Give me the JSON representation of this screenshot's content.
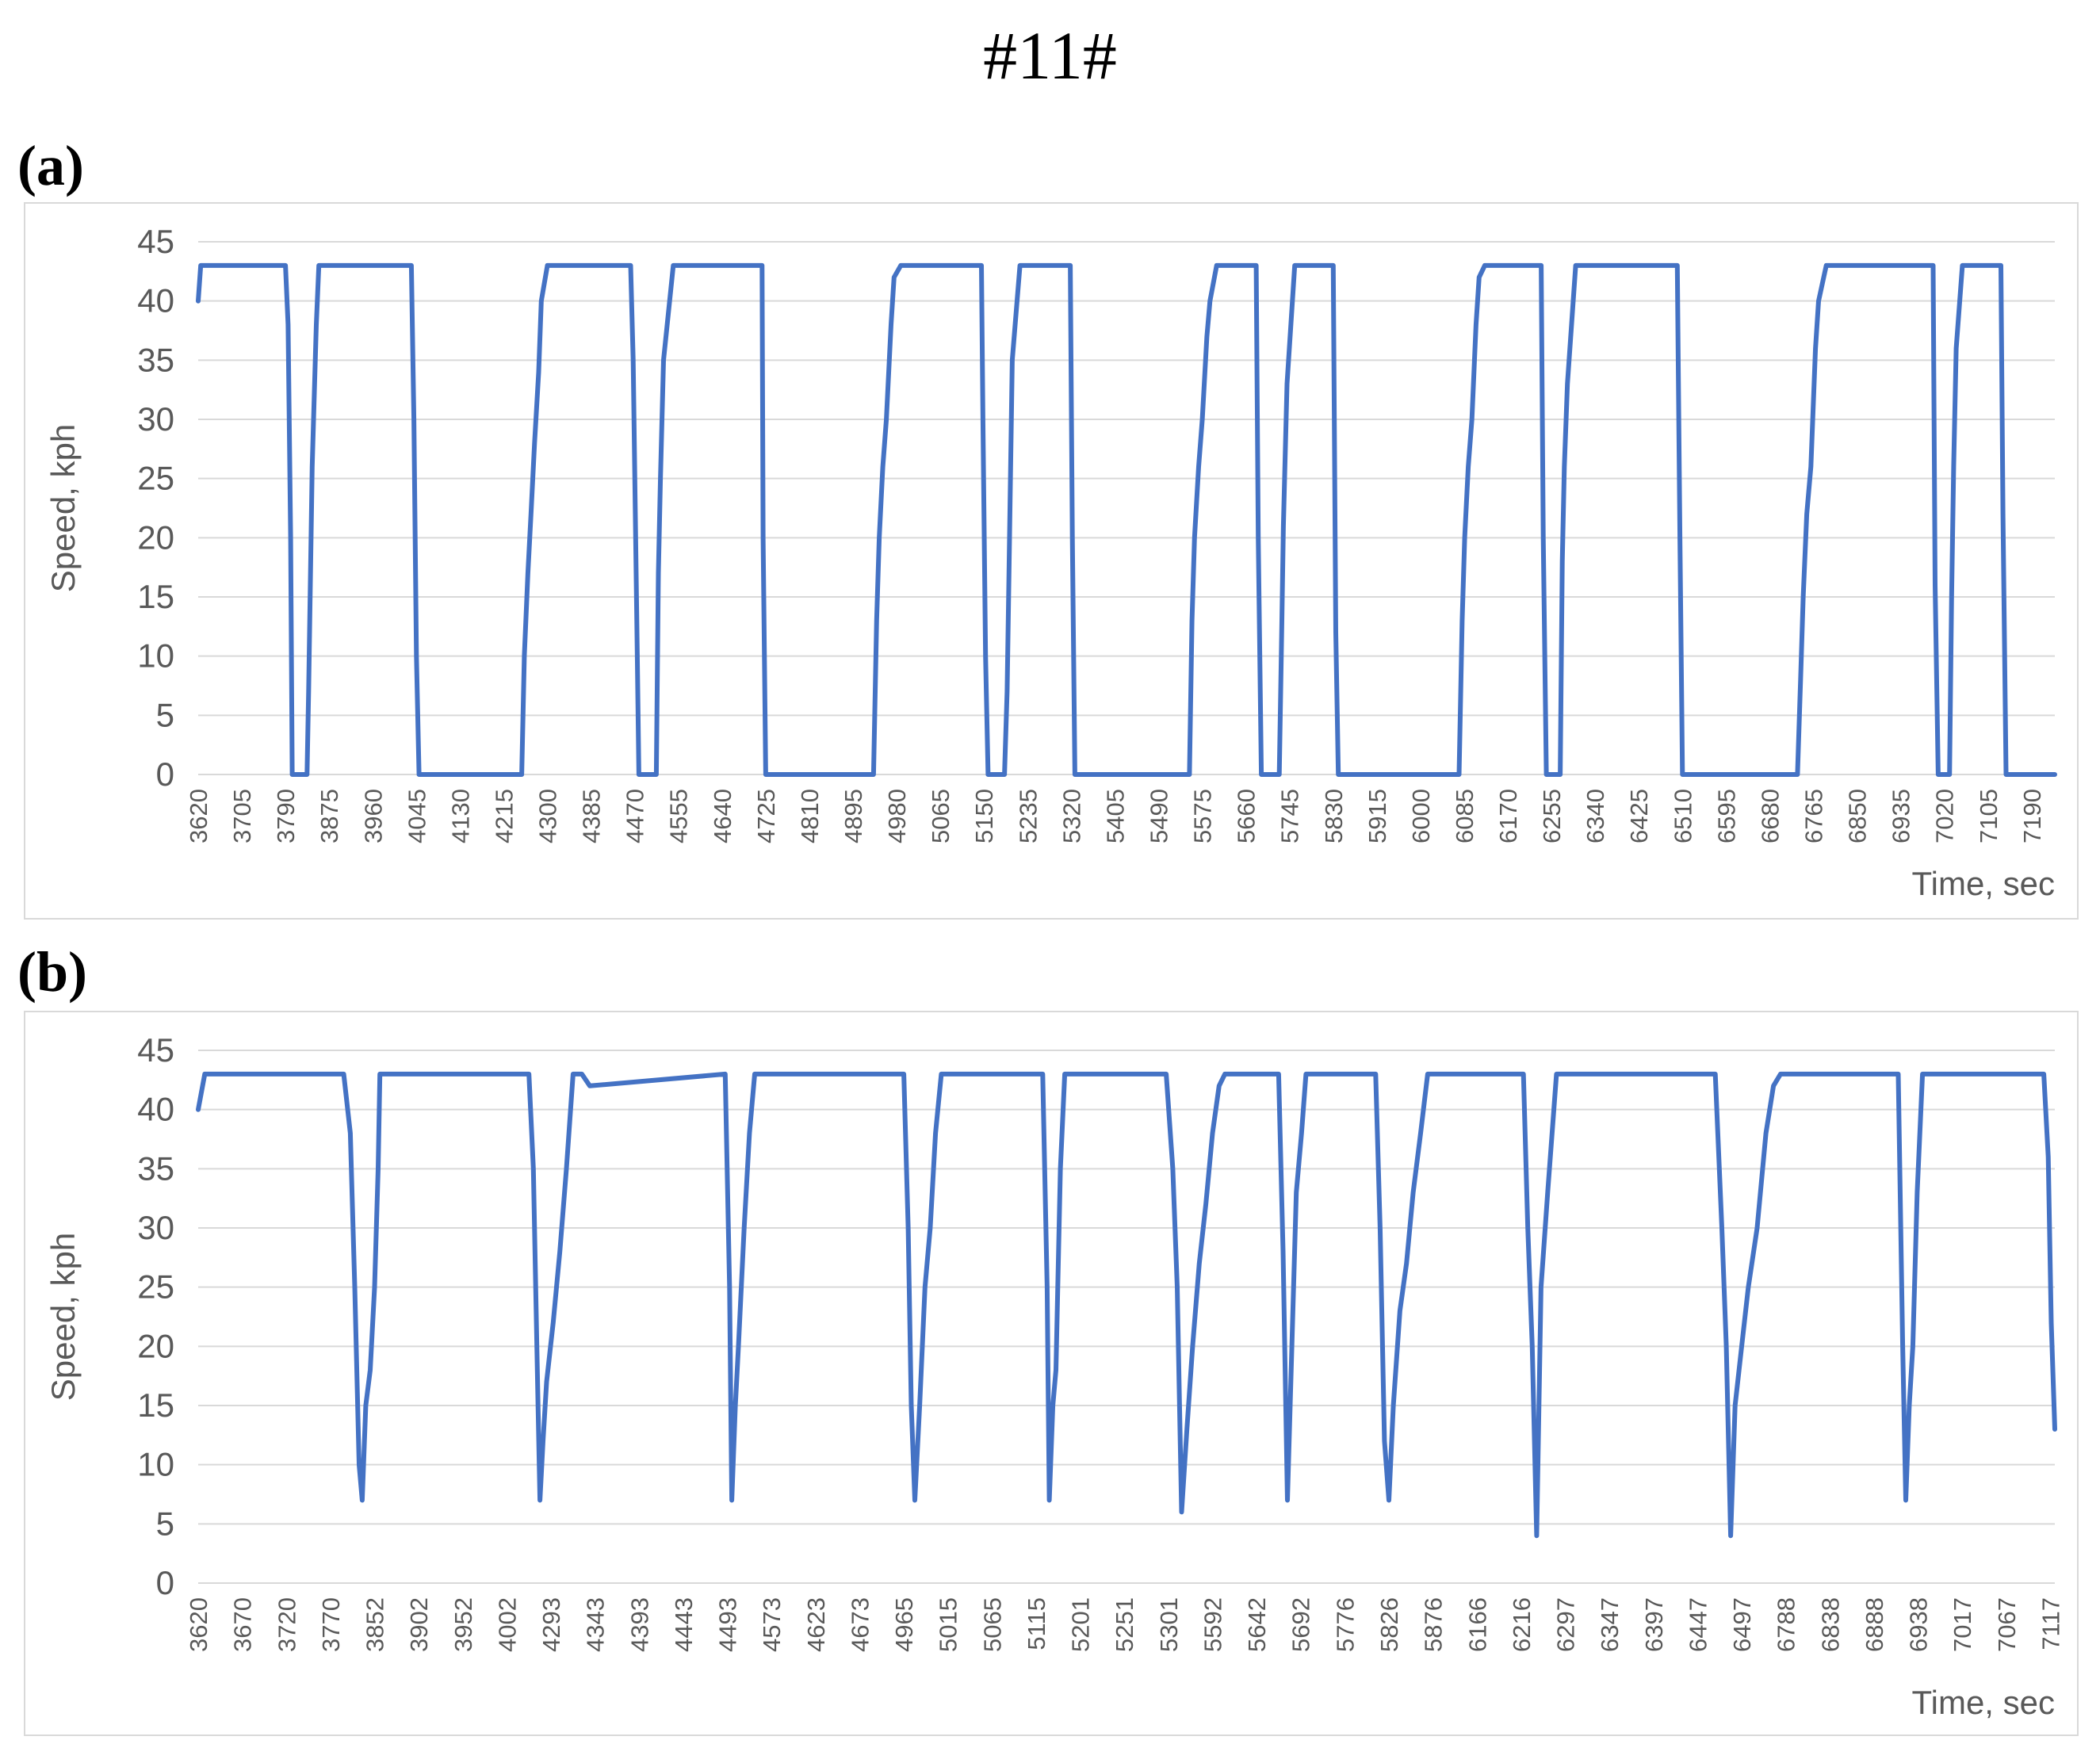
{
  "figure": {
    "title": "#11#",
    "panels": [
      "(a)",
      "(b)"
    ]
  },
  "colors": {
    "series": "#4472C4",
    "grid": "#d9d9d9",
    "text": "#595959"
  },
  "chart_data": [
    {
      "type": "line",
      "panel_label": "(a)",
      "ylabel": "Speed, kph",
      "xlabel": "Time, sec",
      "ylim": [
        0,
        45
      ],
      "yticks": [
        0,
        5,
        10,
        15,
        20,
        25,
        30,
        35,
        40,
        45
      ],
      "grid": true,
      "x_tick_labels": [
        "3620",
        "3705",
        "3790",
        "3875",
        "3960",
        "4045",
        "4130",
        "4215",
        "4300",
        "4385",
        "4470",
        "4555",
        "4640",
        "4725",
        "4810",
        "4895",
        "4980",
        "5065",
        "5150",
        "5235",
        "5320",
        "5405",
        "5490",
        "5575",
        "5660",
        "5745",
        "5830",
        "5915",
        "6000",
        "6085",
        "6170",
        "6255",
        "6340",
        "6425",
        "6510",
        "6595",
        "6680",
        "6765",
        "6850",
        "6935",
        "7020",
        "7105",
        "7190"
      ],
      "x_tick_step": 85,
      "x_start": 3620,
      "x_end": 7235,
      "series": [
        {
          "x": [
            3620,
            3625,
            3790,
            3795,
            3800,
            3803,
            3832,
            3835,
            3838,
            3842,
            3850,
            3855,
            4035,
            4040,
            4045,
            4050,
            4250,
            4255,
            4262,
            4268,
            4275,
            4283,
            4288,
            4300,
            4462,
            4467,
            4475,
            4478,
            4512,
            4516,
            4520,
            4526,
            4545,
            4718,
            4720,
            4725,
            4935,
            4941,
            4946,
            4953,
            4960,
            4969,
            4975,
            4988,
            5145,
            5148,
            5153,
            5158,
            5190,
            5195,
            5198,
            5205,
            5220,
            5318,
            5322,
            5327,
            5550,
            5555,
            5560,
            5568,
            5575,
            5584,
            5590,
            5603,
            5680,
            5684,
            5690,
            5725,
            5730,
            5733,
            5740,
            5755,
            5830,
            5835,
            5840,
            6075,
            6081,
            6086,
            6093,
            6100,
            6108,
            6114,
            6125,
            6235,
            6239,
            6245,
            6272,
            6276,
            6280,
            6286,
            6302,
            6500,
            6505,
            6510,
            6734,
            6740,
            6745,
            6752,
            6760,
            6769,
            6775,
            6790,
            6998,
            7002,
            7008,
            7030,
            7034,
            7038,
            7043,
            7055,
            7130,
            7134,
            7140,
            7235
          ],
          "y": [
            40,
            43,
            43,
            38,
            20,
            0,
            0,
            7,
            15,
            26,
            38,
            43,
            43,
            30,
            10,
            0,
            0,
            10,
            17,
            22,
            28,
            34,
            40,
            43,
            43,
            35,
            10,
            0,
            0,
            17,
            25,
            35,
            43,
            43,
            20,
            0,
            0,
            13,
            20,
            26,
            30,
            38,
            42,
            43,
            43,
            30,
            10,
            0,
            0,
            7,
            15,
            35,
            43,
            43,
            20,
            0,
            0,
            13,
            20,
            26,
            30,
            37,
            40,
            43,
            43,
            20,
            0,
            0,
            13,
            21,
            33,
            43,
            43,
            12,
            0,
            0,
            13,
            20,
            26,
            30,
            38,
            42,
            43,
            43,
            20,
            0,
            0,
            18,
            26,
            33,
            43,
            43,
            20,
            0,
            0,
            8,
            15,
            22,
            26,
            36,
            40,
            43,
            43,
            16,
            0,
            0,
            15,
            26,
            36,
            43,
            43,
            22,
            0,
            0
          ]
        }
      ]
    },
    {
      "type": "line",
      "panel_label": "(b)",
      "ylabel": "Speed, kph",
      "xlabel": "Time, sec",
      "ylim": [
        0,
        45
      ],
      "yticks": [
        0,
        5,
        10,
        15,
        20,
        25,
        30,
        35,
        40,
        45
      ],
      "grid": true,
      "x_tick_labels": [
        "3620",
        "3670",
        "3720",
        "3770",
        "3852",
        "3902",
        "3952",
        "4002",
        "4293",
        "4343",
        "4393",
        "4443",
        "4493",
        "4573",
        "4623",
        "4673",
        "4965",
        "5015",
        "5065",
        "5115",
        "5201",
        "5251",
        "5301",
        "5592",
        "5642",
        "5692",
        "5776",
        "5826",
        "5876",
        "6166",
        "6216",
        "6297",
        "6347",
        "6397",
        "6447",
        "6497",
        "6788",
        "6838",
        "6888",
        "6938",
        "7017",
        "7067",
        "7117"
      ],
      "x_index_end": 42.1,
      "series": [
        {
          "x_index": [
            0,
            0.15,
            3.3,
            3.45,
            3.55,
            3.65,
            3.72,
            3.8,
            3.9,
            4.0,
            4.08,
            4.12,
            7.5,
            7.6,
            7.68,
            7.75,
            7.82,
            7.9,
            8.05,
            8.2,
            8.35,
            8.5,
            8.7,
            8.88,
            11.95,
            12.05,
            12.1,
            12.18,
            12.25,
            12.38,
            12.5,
            12.62,
            16.0,
            16.1,
            16.17,
            16.25,
            16.36,
            16.48,
            16.6,
            16.72,
            16.85,
            19.15,
            19.25,
            19.3,
            19.38,
            19.45,
            19.55,
            19.65,
            19.75,
            21.95,
            22.1,
            22.2,
            22.3,
            22.42,
            22.55,
            22.7,
            22.85,
            23.0,
            23.15,
            23.28,
            24.5,
            24.6,
            24.7,
            24.8,
            24.9,
            25.02,
            25.12,
            26.7,
            26.8,
            26.9,
            27.0,
            27.1,
            27.25,
            27.4,
            27.55,
            27.72,
            27.88,
            28.02,
            30.05,
            30.15,
            30.25,
            30.35,
            30.45,
            30.6,
            30.8,
            34.4,
            34.55,
            34.65,
            34.75,
            34.85,
            35.0,
            35.15,
            35.35,
            35.55,
            35.72,
            35.88,
            36.02,
            38.55,
            38.65,
            38.72,
            38.8,
            38.88,
            38.98,
            39.1,
            39.22,
            41.85,
            41.95,
            42.02,
            42.1
          ],
          "y": [
            40,
            43,
            43,
            38,
            25,
            10,
            7,
            15,
            18,
            25,
            35,
            43,
            43,
            35,
            20,
            7,
            12,
            17,
            22,
            28,
            35,
            43,
            43,
            42,
            43,
            25,
            7,
            15,
            20,
            30,
            38,
            43,
            43,
            30,
            15,
            7,
            15,
            25,
            30,
            38,
            43,
            43,
            25,
            7,
            15,
            18,
            35,
            43,
            43,
            43,
            35,
            25,
            6,
            13,
            20,
            27,
            32,
            38,
            42,
            43,
            43,
            28,
            7,
            20,
            33,
            38,
            43,
            43,
            30,
            12,
            7,
            15,
            23,
            27,
            33,
            38,
            43,
            43,
            43,
            30,
            20,
            4,
            25,
            33,
            43,
            43,
            30,
            20,
            4,
            15,
            20,
            25,
            30,
            38,
            42,
            43,
            43,
            43,
            20,
            7,
            15,
            20,
            33,
            43,
            43,
            43,
            36,
            22,
            13
          ]
        }
      ]
    }
  ]
}
